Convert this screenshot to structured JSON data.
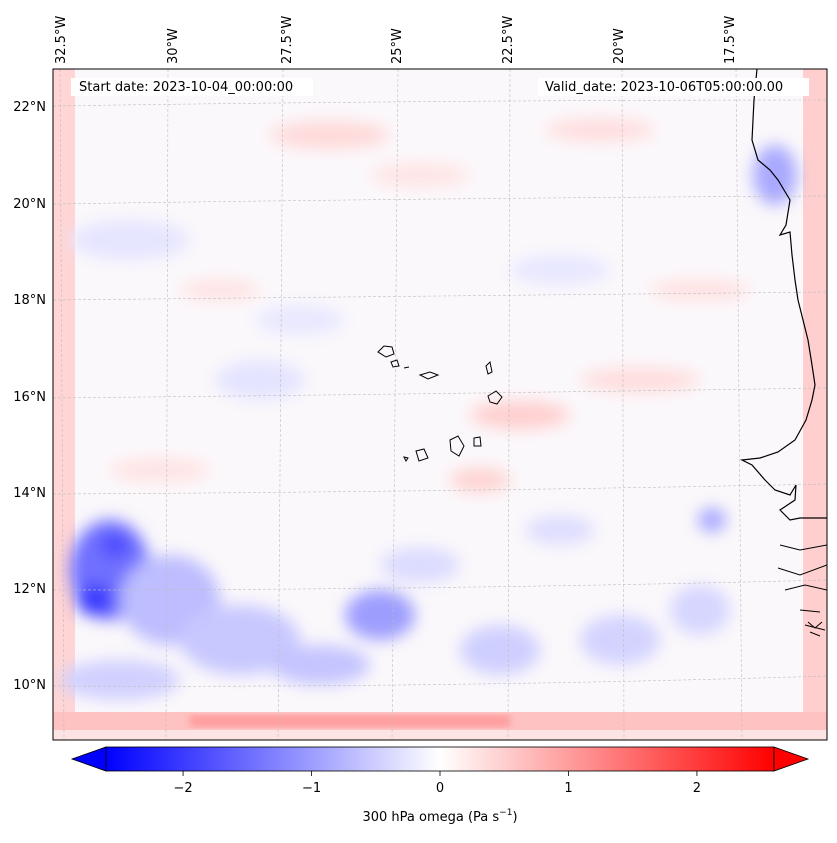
{
  "map": {
    "start_date": "Start date: 2023-10-04_00:00:00",
    "valid_date": "Valid_date: 2023-10-06T05:00:00.00",
    "lon_labels": [
      "32.5°W",
      "30°W",
      "27.5°W",
      "25°W",
      "22.5°W",
      "20°W",
      "17.5°W"
    ],
    "lat_labels": [
      "22°N",
      "20°N",
      "18°N",
      "16°N",
      "14°N",
      "12°N",
      "10°N"
    ]
  },
  "colorbar": {
    "ticks": [
      "−2",
      "−1",
      "0",
      "1",
      "2"
    ],
    "tick_values": [
      -2,
      -1,
      0,
      1,
      2
    ],
    "range": [
      -2.6,
      2.6
    ],
    "label_main": "300 hPa omega (Pa s",
    "label_sup": "−1",
    "label_end": ")",
    "colors": {
      "negative": "#0000ff",
      "zero": "#ffffff",
      "positive": "#ff0000"
    }
  }
}
